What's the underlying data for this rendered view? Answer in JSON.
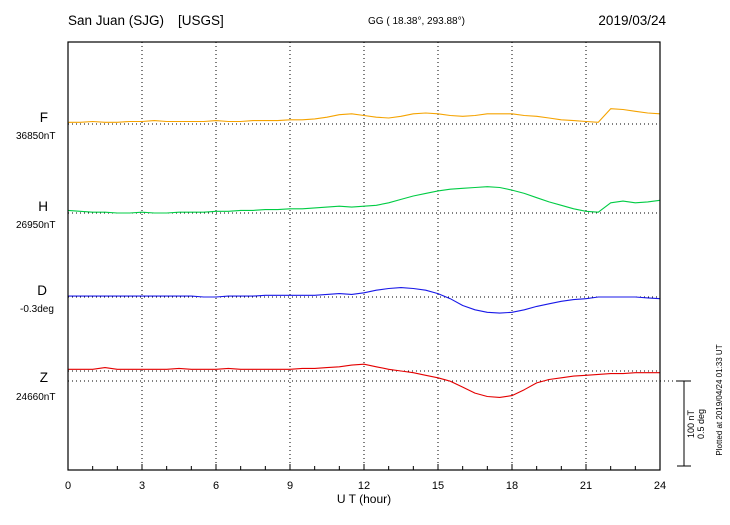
{
  "header": {
    "station": "San Juan (SJG)",
    "agency": "[USGS]",
    "gg_coords": "GG ( 18.38°, 293.88°)",
    "date": "2019/03/24"
  },
  "footer": {
    "plotted_note": "Plotted at 2019/04/24 01:33 UT"
  },
  "chart_data": {
    "type": "line",
    "title": "San Juan (SJG) magnetogram, 2019/03/24",
    "x_start": 0,
    "x_step": 0.5,
    "x_range": [
      0,
      24
    ],
    "axis": {
      "x_ticks": [
        0,
        3,
        6,
        9,
        12,
        15,
        18,
        21,
        24
      ],
      "x_label": "U T (hour)"
    },
    "grid": "dotted vertical lines every 3 hours; dotted horizontal baseline per channel",
    "scale_bar": {
      "nt_label": "100 nT",
      "deg_label": "0.5 deg",
      "nT_per_div": 100,
      "deg_per_div": 0.5
    },
    "series": [
      {
        "name": "F",
        "unit": "nT",
        "baseline_label": "36850nT",
        "baseline_value": 36850,
        "color": "#f5a300",
        "offsets": [
          2,
          2,
          3,
          2,
          2,
          3,
          3,
          4,
          3,
          3,
          3,
          3,
          4,
          3,
          3,
          4,
          4,
          4,
          5,
          5,
          6,
          8,
          11,
          12,
          10,
          8,
          7,
          9,
          12,
          13,
          12,
          10,
          9,
          10,
          12,
          12,
          12,
          10,
          9,
          7,
          5,
          4,
          3,
          2,
          18,
          17,
          15,
          13,
          12
        ]
      },
      {
        "name": "H",
        "unit": "nT",
        "baseline_label": "26950nT",
        "baseline_value": 26950,
        "color": "#00cc44",
        "offsets": [
          3,
          2,
          1,
          1,
          0,
          0,
          1,
          0,
          0,
          1,
          1,
          1,
          2,
          2,
          3,
          3,
          4,
          4,
          5,
          5,
          6,
          7,
          8,
          7,
          8,
          9,
          12,
          16,
          20,
          23,
          26,
          28,
          29,
          30,
          31,
          30,
          27,
          23,
          18,
          13,
          9,
          5,
          2,
          1,
          12,
          14,
          12,
          13,
          15
        ]
      },
      {
        "name": "D",
        "unit": "deg",
        "baseline_label": "-0.3deg",
        "baseline_value": -0.3,
        "color": "#1818e8",
        "offsets": [
          0.005,
          0.005,
          0.005,
          0.005,
          0.005,
          0.005,
          0.005,
          0.005,
          0.005,
          0.005,
          0.005,
          0,
          0,
          0.005,
          0.005,
          0.005,
          0.01,
          0.01,
          0.01,
          0.01,
          0.01,
          0.015,
          0.02,
          0.015,
          0.025,
          0.04,
          0.05,
          0.055,
          0.05,
          0.04,
          0.02,
          -0.01,
          -0.05,
          -0.075,
          -0.09,
          -0.095,
          -0.09,
          -0.075,
          -0.055,
          -0.04,
          -0.025,
          -0.015,
          -0.01,
          0,
          0,
          0,
          0,
          -0.005,
          -0.01
        ]
      },
      {
        "name": "Z",
        "unit": "nT",
        "baseline_label": "24660nT",
        "baseline_value": 24660,
        "color": "#e40000",
        "offsets": [
          2,
          2,
          2,
          4,
          2,
          2,
          2,
          2,
          2,
          3,
          2,
          2,
          2,
          3,
          2,
          2,
          2,
          2,
          2,
          3,
          3,
          4,
          5,
          7,
          8,
          5,
          2,
          0,
          -2,
          -5,
          -8,
          -12,
          -19,
          -26,
          -30,
          -31,
          -29,
          -22,
          -14,
          -10,
          -8,
          -6,
          -5,
          -4,
          -3,
          -3,
          -2,
          -2,
          -2
        ]
      }
    ]
  }
}
